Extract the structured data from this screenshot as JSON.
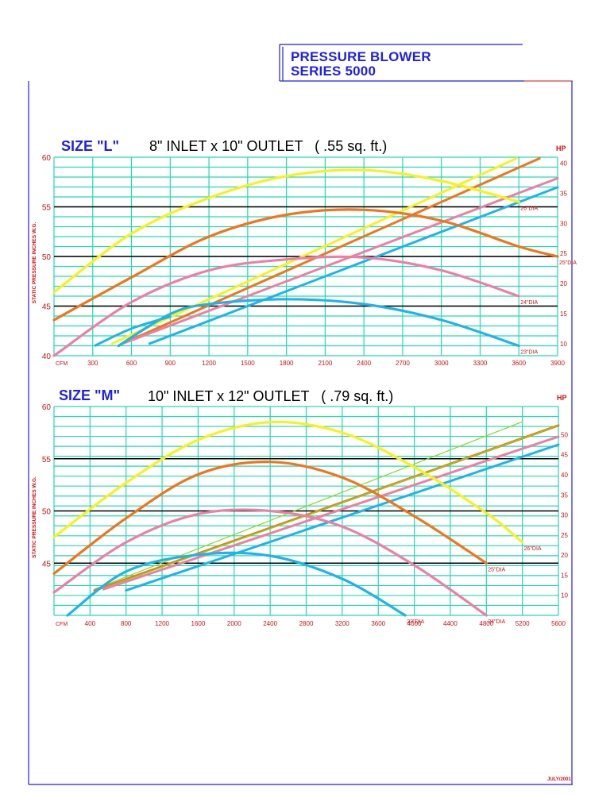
{
  "header": {
    "line1": "PRESSURE BLOWER",
    "line2": "SERIES 5000"
  },
  "footer": {
    "date": "JULY/2001"
  },
  "colors": {
    "grid": "#21d9b4",
    "major_line": "#000000",
    "axis_text": "#d01010",
    "title_blue": "#1f1fe6",
    "yellow": "#f7f21c",
    "orange": "#f2751a",
    "pink": "#ee7fa4",
    "blue": "#1eb4ea",
    "green": "#7ddc1c"
  },
  "chart_data": [
    {
      "type": "line",
      "size_label": "SIZE \"L\"",
      "spec": "8\" INLET x 10\" OUTLET   ( .55 sq. ft.)",
      "ylabel": "STATIC PRESSURE INCHES W.G.",
      "xlabel_unit": "CFM",
      "y2label": "HP",
      "xlim": [
        0,
        3900
      ],
      "ylim": [
        40,
        60
      ],
      "y2lim": [
        8,
        41
      ],
      "x_ticks": [
        300,
        600,
        900,
        1200,
        1500,
        1800,
        2100,
        2400,
        2700,
        3000,
        3300,
        3600,
        3900
      ],
      "y_ticks": [
        40,
        45,
        50,
        55,
        60
      ],
      "y2_ticks": [
        10,
        15,
        20,
        25,
        30,
        35,
        40
      ],
      "pressure_curves": [
        {
          "name": "26\"DIA",
          "color": "#f7f21c",
          "x": [
            0,
            600,
            1200,
            1800,
            2400,
            3000,
            3600
          ],
          "y": [
            46.4,
            52.3,
            55.9,
            58.1,
            58.7,
            57.6,
            55.5
          ]
        },
        {
          "name": "25\"DIA",
          "color": "#f2751a",
          "x": [
            0,
            600,
            1200,
            1800,
            2400,
            3000,
            3600,
            3900
          ],
          "y": [
            43.6,
            47.9,
            52.0,
            54.2,
            54.7,
            53.6,
            51.0,
            50.0
          ]
        },
        {
          "name": "24\"DIA",
          "color": "#ee7fa4",
          "x": [
            0,
            600,
            1200,
            1800,
            2400,
            3000,
            3600
          ],
          "y": [
            40.0,
            45.4,
            48.6,
            49.7,
            49.9,
            48.6,
            46.0
          ]
        },
        {
          "name": "23\"DIA",
          "color": "#1eb4ea",
          "x": [
            500,
            900,
            1200,
            1800,
            2400,
            3000,
            3600
          ],
          "y": [
            41.0,
            44.2,
            45.2,
            45.7,
            45.2,
            43.6,
            41.0
          ]
        }
      ],
      "hp_curves": [
        {
          "color": "#f7f21c",
          "x": [
            450,
            3580
          ],
          "hp": [
            10,
            40.8
          ]
        },
        {
          "color": "#f2751a",
          "x": [
            530,
            3760
          ],
          "hp": [
            10,
            40.8
          ]
        },
        {
          "color": "#ee7fa4",
          "x": [
            530,
            3900
          ],
          "hp": [
            10,
            37.5
          ]
        },
        {
          "color": "#1eb4ea",
          "x": [
            740,
            3900
          ],
          "hp": [
            10,
            36.0
          ]
        },
        {
          "color": "#1eb4ea",
          "x": [
            320,
            600,
            900
          ],
          "hp": [
            9.7,
            12.5,
            14.5
          ]
        }
      ]
    },
    {
      "type": "line",
      "size_label": "SIZE \"M\"",
      "spec": "10\" INLET x 12\" OUTLET   ( .79 sq. ft.)",
      "ylabel": "STATIC PRESSURE INCHES W.G.",
      "xlabel_unit": "CFM",
      "y2label": "HP",
      "xlim": [
        0,
        5600
      ],
      "ylim": [
        40,
        60
      ],
      "y2lim": [
        5,
        57
      ],
      "x_ticks": [
        400,
        800,
        1200,
        1600,
        2000,
        2400,
        2800,
        3200,
        3600,
        4000,
        4400,
        4800,
        5200,
        5600
      ],
      "y_ticks": [
        45,
        50,
        55,
        60
      ],
      "y2_ticks": [
        10,
        15,
        20,
        25,
        30,
        35,
        40,
        45,
        50
      ],
      "pressure_curves": [
        {
          "name": "26\"DIA",
          "color": "#f7f21c",
          "x": [
            0,
            800,
            1600,
            2400,
            3200,
            4000,
            4800,
            5200
          ],
          "y": [
            47.5,
            52.7,
            56.8,
            58.5,
            57.5,
            54.2,
            49.8,
            47.0
          ]
        },
        {
          "name": "25\"DIA",
          "color": "#f2751a",
          "x": [
            0,
            800,
            1600,
            2400,
            3200,
            4000,
            4800
          ],
          "y": [
            44.0,
            49.3,
            53.5,
            54.7,
            53.2,
            49.5,
            45.0
          ]
        },
        {
          "name": "24\"DIA",
          "color": "#ee7fa4",
          "x": [
            0,
            800,
            1600,
            2400,
            3200,
            4000,
            4800
          ],
          "y": [
            42.2,
            47.0,
            49.7,
            50.0,
            48.5,
            44.8,
            40.0
          ]
        },
        {
          "name": "23\"DIA",
          "color": "#1eb4ea",
          "x": [
            150,
            800,
            1600,
            2400,
            3200,
            3900
          ],
          "y": [
            40.0,
            44.2,
            45.8,
            45.7,
            43.5,
            40.0
          ]
        }
      ],
      "hp_curves": [
        {
          "color": "#7ddc1c",
          "x": [
            450,
            5200
          ],
          "hp": [
            11.5,
            53.2
          ]
        },
        {
          "color": "#f2751a",
          "x": [
            450,
            5600
          ],
          "hp": [
            11.2,
            52.3
          ]
        },
        {
          "color": "#7ddc1c",
          "x": [
            450,
            5600
          ],
          "hp": [
            11.0,
            52.3
          ]
        },
        {
          "color": "#ee7fa4",
          "x": [
            550,
            5600
          ],
          "hp": [
            11.5,
            49.5
          ]
        },
        {
          "color": "#1eb4ea",
          "x": [
            800,
            5600
          ],
          "hp": [
            11.2,
            47.5
          ]
        }
      ]
    }
  ]
}
